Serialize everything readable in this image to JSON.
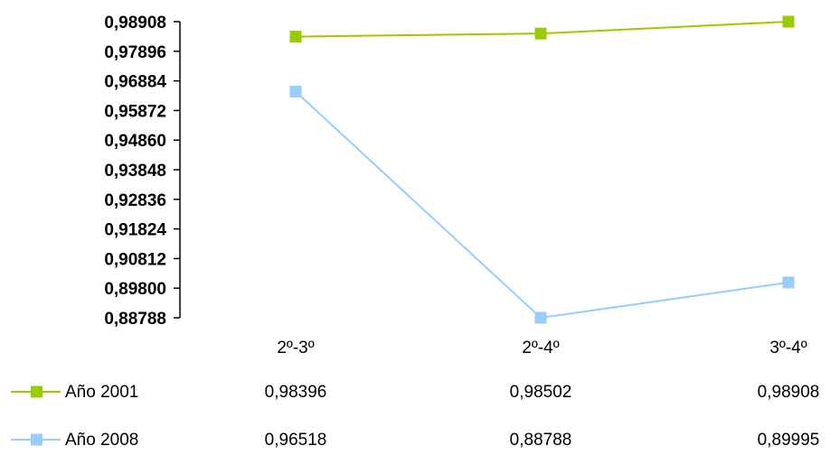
{
  "chart_data": {
    "type": "line",
    "categories": [
      "2º-3º",
      "2º-4º",
      "3º-4º"
    ],
    "yticks": [
      "0,98908",
      "0,97896",
      "0,96884",
      "0,95872",
      "0,94860",
      "0,93848",
      "0,92836",
      "0,91824",
      "0,90812",
      "0,89800",
      "0,88788"
    ],
    "ylim": [
      0.88788,
      0.98908
    ],
    "grid": false,
    "legend_position": "bottom-left (data table)",
    "series": [
      {
        "name": "Año 2001",
        "color": "#99cc00",
        "marker": "square",
        "values": [
          0.98396,
          0.98502,
          0.98908
        ],
        "labels": [
          "0,98396",
          "0,98502",
          "0,98908"
        ]
      },
      {
        "name": "Año 2008",
        "color": "#99ccff",
        "marker": "square",
        "values": [
          0.96518,
          0.88788,
          0.89995
        ],
        "labels": [
          "0,96518",
          "0,88788",
          "0,89995"
        ]
      }
    ]
  }
}
